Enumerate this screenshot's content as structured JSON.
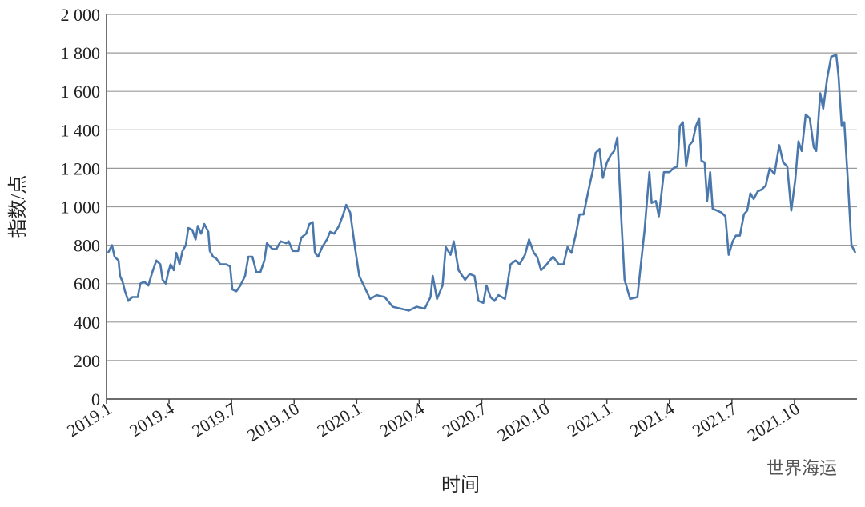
{
  "chart_data": {
    "type": "line",
    "x_label": "时间",
    "y_label": "指数/点",
    "watermark": "世界海运",
    "color": "#4a78ac",
    "grid": true,
    "xlim": [
      2019,
      2022
    ],
    "ylim": [
      0,
      2000
    ],
    "xticks": [
      {
        "value": 2019,
        "label": "2019.1"
      },
      {
        "value": 2019.25,
        "label": "2019.4"
      },
      {
        "value": 2019.5,
        "label": "2019.7"
      },
      {
        "value": 2019.75,
        "label": "2019.10"
      },
      {
        "value": 2020,
        "label": "2020.1"
      },
      {
        "value": 2020.25,
        "label": "2020.4"
      },
      {
        "value": 2020.5,
        "label": "2020.7"
      },
      {
        "value": 2020.75,
        "label": "2020.10"
      },
      {
        "value": 2021,
        "label": "2021.1"
      },
      {
        "value": 2021.25,
        "label": "2021.4"
      },
      {
        "value": 2021.5,
        "label": "2021.7"
      },
      {
        "value": 2021.75,
        "label": "2021.10"
      }
    ],
    "yticks": [
      0,
      200,
      400,
      600,
      800,
      {
        "value": 1000,
        "label": "1 000"
      },
      {
        "value": 1200,
        "label": "1 200"
      },
      {
        "value": 1400,
        "label": "1 400"
      },
      {
        "value": 1600,
        "label": "1 600"
      },
      {
        "value": 1800,
        "label": "1 800"
      },
      {
        "value": 2000,
        "label": "2 000"
      }
    ],
    "x": [
      2019.006,
      2019.022,
      2019.032,
      2019.048,
      2019.054,
      2019.064,
      2019.074,
      2019.087,
      2019.103,
      2019.125,
      2019.135,
      2019.151,
      2019.167,
      2019.183,
      2019.199,
      2019.215,
      2019.224,
      2019.237,
      2019.247,
      2019.256,
      2019.269,
      2019.279,
      2019.292,
      2019.304,
      2019.317,
      2019.327,
      2019.343,
      2019.356,
      2019.365,
      2019.378,
      2019.391,
      2019.407,
      2019.413,
      2019.426,
      2019.439,
      2019.455,
      2019.478,
      2019.494,
      2019.503,
      2019.519,
      2019.535,
      2019.554,
      2019.567,
      2019.583,
      2019.599,
      2019.615,
      2019.631,
      2019.641,
      2019.663,
      2019.679,
      2019.696,
      2019.718,
      2019.728,
      2019.744,
      2019.766,
      2019.779,
      2019.798,
      2019.811,
      2019.824,
      2019.833,
      2019.846,
      2019.862,
      2019.881,
      2019.894,
      2019.91,
      2019.929,
      2019.946,
      2019.958,
      2019.974,
      2019.994,
      2020.01,
      2020.032,
      2020.054,
      2020.08,
      2020.112,
      2020.144,
      2020.176,
      2020.208,
      2020.24,
      2020.272,
      2020.295,
      2020.304,
      2020.321,
      2020.343,
      2020.356,
      2020.375,
      2020.388,
      2020.407,
      2020.433,
      2020.452,
      2020.471,
      2020.487,
      2020.506,
      2020.519,
      2020.535,
      2020.551,
      2020.567,
      2020.593,
      2020.603,
      2020.615,
      2020.635,
      2020.651,
      2020.673,
      2020.689,
      2020.708,
      2020.721,
      2020.737,
      2020.753,
      2020.785,
      2020.808,
      2020.827,
      2020.843,
      2020.859,
      2020.878,
      2020.891,
      2020.907,
      2020.929,
      2020.946,
      2020.955,
      2020.971,
      2020.984,
      2021.0,
      2021.016,
      2021.029,
      2021.042,
      2021.058,
      2021.071,
      2021.093,
      2021.122,
      2021.151,
      2021.17,
      2021.179,
      2021.196,
      2021.208,
      2021.228,
      2021.25,
      2021.266,
      2021.282,
      2021.292,
      2021.304,
      2021.317,
      2021.33,
      2021.343,
      2021.356,
      2021.369,
      2021.378,
      2021.391,
      2021.401,
      2021.413,
      2021.423,
      2021.458,
      2021.474,
      2021.487,
      2021.503,
      2021.516,
      2021.532,
      2021.548,
      2021.561,
      2021.574,
      2021.587,
      2021.603,
      2021.619,
      2021.635,
      2021.651,
      2021.67,
      2021.689,
      2021.705,
      2021.721,
      2021.737,
      2021.753,
      2021.766,
      2021.779,
      2021.795,
      2021.811,
      2021.827,
      2021.837,
      2021.853,
      2021.865,
      2021.881,
      2021.897,
      2021.917,
      2021.926,
      2021.939,
      2021.949,
      2021.965,
      2021.978,
      2021.994
    ],
    "values": [
      760,
      800,
      740,
      720,
      640,
      610,
      560,
      510,
      530,
      530,
      600,
      610,
      590,
      660,
      720,
      700,
      620,
      600,
      660,
      700,
      670,
      760,
      700,
      770,
      800,
      890,
      880,
      830,
      900,
      860,
      910,
      870,
      770,
      740,
      730,
      700,
      700,
      690,
      570,
      560,
      590,
      640,
      740,
      740,
      660,
      660,
      720,
      810,
      780,
      780,
      820,
      810,
      820,
      770,
      770,
      840,
      860,
      910,
      920,
      760,
      740,
      790,
      830,
      870,
      860,
      900,
      960,
      1010,
      970,
      780,
      640,
      580,
      520,
      540,
      530,
      480,
      470,
      460,
      480,
      470,
      530,
      640,
      520,
      590,
      790,
      750,
      820,
      670,
      620,
      650,
      640,
      510,
      500,
      590,
      530,
      510,
      540,
      520,
      600,
      700,
      720,
      700,
      750,
      830,
      760,
      740,
      670,
      690,
      740,
      700,
      700,
      790,
      760,
      870,
      960,
      960,
      1100,
      1200,
      1280,
      1300,
      1150,
      1230,
      1270,
      1290,
      1360,
      930,
      620,
      520,
      530,
      880,
      1180,
      1020,
      1030,
      950,
      1180,
      1180,
      1200,
      1210,
      1420,
      1440,
      1210,
      1320,
      1340,
      1420,
      1460,
      1240,
      1230,
      1030,
      1180,
      990,
      970,
      950,
      750,
      820,
      850,
      850,
      960,
      980,
      1070,
      1040,
      1080,
      1090,
      1110,
      1200,
      1170,
      1320,
      1230,
      1210,
      980,
      1140,
      1340,
      1290,
      1480,
      1460,
      1310,
      1290,
      1590,
      1510,
      1670,
      1780,
      1790,
      1680,
      1420,
      1440,
      1100,
      800,
      760
    ]
  }
}
